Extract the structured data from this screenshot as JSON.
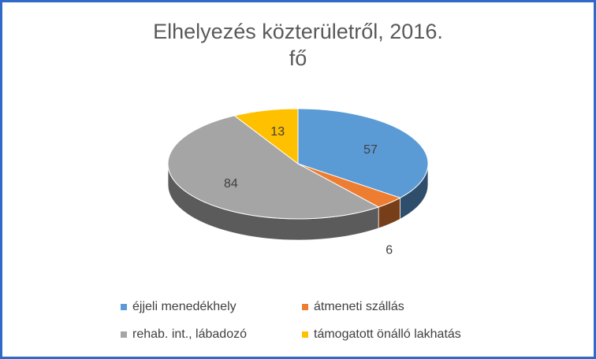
{
  "chart_data": {
    "type": "pie",
    "title": "Elhelyezés közterületről, 2016.",
    "subtitle": "fő",
    "categories": [
      "éjjeli menedékhely",
      "átmeneti szállás",
      "rehab. int., lábadozó",
      "támogatott önálló lakhatás"
    ],
    "values": [
      57,
      6,
      84,
      13
    ],
    "colors": [
      "#5B9BD5",
      "#ED7D31",
      "#A5A5A5",
      "#FFC000"
    ],
    "legend_position": "bottom"
  }
}
